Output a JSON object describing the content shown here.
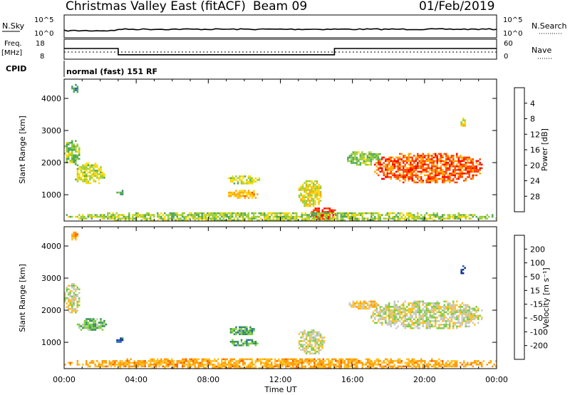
{
  "header": {
    "station": "Christmas Valley East (fitACF)",
    "beam": "Beam 09",
    "date": "01/Feb/2019"
  },
  "nsky": {
    "left_label": "N.Sky",
    "right_label": "N.Search",
    "left_ticks": [
      "10^5",
      "10^0"
    ],
    "right_ticks": [
      "10^5",
      "10^0"
    ]
  },
  "freq": {
    "left_label_1": "Freq.",
    "left_label_2": "[MHz]",
    "left_ticks": [
      "18",
      "8"
    ],
    "right_ticks": [
      "60",
      "0"
    ],
    "right_label": "Nave",
    "cpid_label": "CPID",
    "mode_text": "normal (fast) 151 RF",
    "freq_segments": [
      {
        "from_hour": 0,
        "to_hour": 3,
        "mhz": 14
      },
      {
        "from_hour": 3,
        "to_hour": 15,
        "mhz": 10.5
      },
      {
        "from_hour": 15,
        "to_hour": 24,
        "mhz": 14
      }
    ],
    "nave_level": 24
  },
  "chart_data": [
    {
      "type": "heatmap",
      "quantity": "Power",
      "ylabel": "Slant Range [km]",
      "yticks": [
        "1000",
        "2000",
        "3000",
        "4000"
      ],
      "ylim": [
        180,
        4600
      ],
      "x_hours": [
        0,
        24
      ],
      "colorbar_label": "Power [dB]",
      "colorbar_ticks": [
        "4",
        "8",
        "12",
        "16",
        "20",
        "24",
        "28"
      ],
      "colorbar_colors": [
        "#0000ff",
        "#2a52be",
        "#3a8a70",
        "#4ea858",
        "#9acd32",
        "#ffd700",
        "#ffa500",
        "#ff4500",
        "#ff0000"
      ],
      "regions": [
        {
          "hour_start": 0.0,
          "hour_end": 0.9,
          "range_start": 1900,
          "range_end": 2700,
          "level": 0.45
        },
        {
          "hour_start": 0.6,
          "hour_end": 2.3,
          "range_start": 1350,
          "range_end": 2000,
          "level": 0.55
        },
        {
          "hour_start": 0.4,
          "hour_end": 0.8,
          "range_start": 4150,
          "range_end": 4450,
          "level": 0.3
        },
        {
          "hour_start": 2.9,
          "hour_end": 3.3,
          "range_start": 1000,
          "range_end": 1150,
          "level": 0.35
        },
        {
          "hour_start": 9.1,
          "hour_end": 10.9,
          "range_start": 1300,
          "range_end": 1600,
          "level": 0.55
        },
        {
          "hour_start": 9.1,
          "hour_end": 10.8,
          "range_start": 900,
          "range_end": 1150,
          "level": 0.7
        },
        {
          "hour_start": 13.0,
          "hour_end": 14.3,
          "range_start": 600,
          "range_end": 1450,
          "level": 0.6
        },
        {
          "hour_start": 13.6,
          "hour_end": 15.2,
          "range_start": 200,
          "range_end": 600,
          "level": 0.95
        },
        {
          "hour_start": 15.7,
          "hour_end": 17.6,
          "range_start": 1900,
          "range_end": 2350,
          "level": 0.45
        },
        {
          "hour_start": 17.2,
          "hour_end": 23.2,
          "range_start": 1350,
          "range_end": 2300,
          "level": 0.85
        },
        {
          "hour_start": 22.0,
          "hour_end": 22.3,
          "range_start": 3150,
          "range_end": 3400,
          "level": 0.6
        },
        {
          "hour_start": 0.0,
          "hour_end": 24.0,
          "range_start": 180,
          "range_end": 450,
          "level": 0.5
        }
      ]
    },
    {
      "type": "heatmap",
      "quantity": "Velocity",
      "ylabel": "Slant Range [km]",
      "yticks": [
        "1000",
        "2000",
        "3000",
        "4000"
      ],
      "ylim": [
        180,
        4600
      ],
      "x_hours": [
        0,
        24
      ],
      "xticks": [
        "00:00",
        "04:00",
        "08:00",
        "12:00",
        "16:00",
        "20:00",
        "00:00"
      ],
      "xlabel": "Time UT",
      "colorbar_label": "Velocity [m s⁻¹]",
      "colorbar_ticks": [
        "200",
        "100",
        "50",
        "15",
        "-15",
        "-50",
        "-100",
        "-200"
      ],
      "colorbar_colors": [
        "#0a2a8a",
        "#1f5fbf",
        "#2e8b57",
        "#7ccd3c",
        "#c8c8c0",
        "#ffc020",
        "#ff9a00",
        "#ff5a00",
        "#ff1a00"
      ],
      "regions": [
        {
          "hour_start": 0.0,
          "hour_end": 0.9,
          "range_start": 1900,
          "range_end": 2900,
          "level": 0.5
        },
        {
          "hour_start": 0.7,
          "hour_end": 2.4,
          "range_start": 1350,
          "range_end": 1750,
          "level": 0.35
        },
        {
          "hour_start": 0.4,
          "hour_end": 0.8,
          "range_start": 4150,
          "range_end": 4450,
          "level": 0.7
        },
        {
          "hour_start": 2.9,
          "hour_end": 3.3,
          "range_start": 1000,
          "range_end": 1150,
          "level": 0.1
        },
        {
          "hour_start": 9.2,
          "hour_end": 10.8,
          "range_start": 1200,
          "range_end": 1500,
          "level": 0.3
        },
        {
          "hour_start": 9.2,
          "hour_end": 10.8,
          "range_start": 900,
          "range_end": 1100,
          "level": 0.3
        },
        {
          "hour_start": 13.0,
          "hour_end": 14.5,
          "range_start": 600,
          "range_end": 1400,
          "level": 0.5
        },
        {
          "hour_start": 15.8,
          "hour_end": 17.5,
          "range_start": 2000,
          "range_end": 2300,
          "level": 0.6
        },
        {
          "hour_start": 17.0,
          "hour_end": 23.2,
          "range_start": 1400,
          "range_end": 2300,
          "level": 0.5
        },
        {
          "hour_start": 22.0,
          "hour_end": 22.3,
          "range_start": 3150,
          "range_end": 3400,
          "level": 0.0
        },
        {
          "hour_start": 0.0,
          "hour_end": 24.0,
          "range_start": 180,
          "range_end": 500,
          "level": 0.7
        }
      ]
    }
  ]
}
